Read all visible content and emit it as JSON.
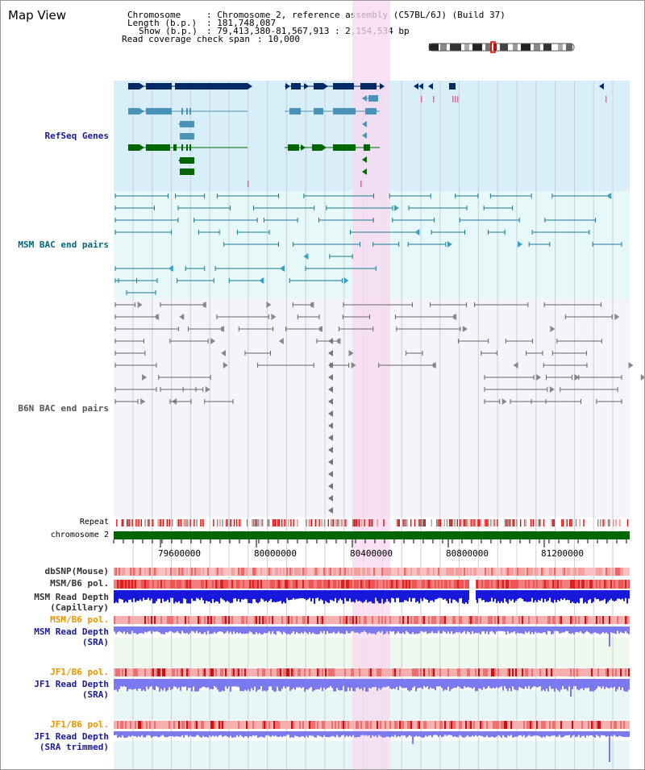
{
  "map_title": "Map View",
  "info": {
    "chromosome_key": "Chromosome",
    "chromosome_value": ": Chromosome 2, reference assembly (C57BL/6J) (Build 37)",
    "length_key": "Length (b.p.)",
    "length_value": ": 181,748,087",
    "show_key": "Show (b.p.)",
    "show_value": ": 79,413,380-81,567,913 : 2,154,534 bp",
    "read_key": "Read coverage check span",
    "read_value": ": 10,000"
  },
  "tracks": {
    "refseq": "RefSeq Genes",
    "msm_bac": "MSM BAC end pairs",
    "b6n_bac": "B6N BAC end pairs",
    "repeat": "Repeat",
    "chromosome": "chromosome 2",
    "dbsnp": "dbSNP(Mouse)",
    "msm_b6_pol": "MSM/B6 pol.",
    "msm_read_depth_cap_1": "MSM Read Depth",
    "msm_read_depth_cap_2": "(Capillary)",
    "msm_b6_pol_2": "MSM/B6 pol.",
    "msm_read_depth_sra_1": "MSM Read Depth",
    "msm_read_depth_sra_2": "(SRA)",
    "jf1_b6_pol": "JF1/B6 pol.",
    "jf1_read_depth_sra_1": "JF1 Read Depth",
    "jf1_read_depth_sra_2": "(SRA)",
    "jf1_b6_pol_2": "JF1/B6 pol.",
    "jf1_read_depth_trim_1": "JF1 Read Depth",
    "jf1_read_depth_trim_2": "(SRA trimmed)"
  },
  "axis": {
    "ticks": [
      "79600000",
      "80000000",
      "80400000",
      "80800000",
      "81200000"
    ]
  },
  "colors": {
    "highlight": "#f8d8f0",
    "refseq_bg": "#d8eef8",
    "msm_bg": "#e6f8f8",
    "b6n_bg": "#f4f4fa",
    "navy_gene": "#002a66",
    "teal_gene": "#4a92b8",
    "green_gene": "#006600",
    "chromosome_bar": "#006600",
    "repeat_red": "#dd1111",
    "read_depth_blue": "#1818dd",
    "sra_blue": "#7a7aee",
    "pol_red": "#ee4444"
  }
}
